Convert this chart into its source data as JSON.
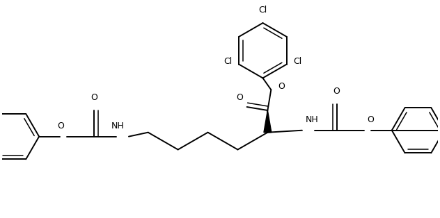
{
  "bg_color": "#ffffff",
  "lw": 1.4,
  "lw_thin": 1.1,
  "figsize": [
    6.32,
    3.14
  ],
  "dpi": 100,
  "xlim": [
    0,
    6.32
  ],
  "ylim": [
    0,
    3.14
  ],
  "ring_r": 0.38,
  "ring_r_top": 0.4,
  "font_size": 9.0
}
